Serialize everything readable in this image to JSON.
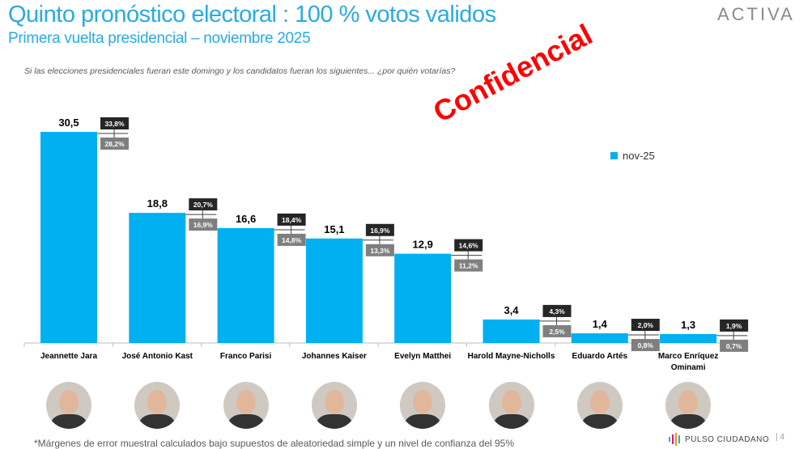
{
  "header": {
    "title": "Quinto pronóstico electoral : 100 % votos validos",
    "subtitle": "Primera vuelta presidencial – noviembre 2025",
    "logo": "ACTIVA"
  },
  "question": "Si las elecciones presidenciales fueran este domingo y los candidatos fueran los siguientes... ¿por quién votarías?",
  "watermark": "Confidencial",
  "footer": {
    "note": "*Márgenes de error muestral calculados bajo supuestos de aleatoriedad simple y un nivel de confianza del 95%",
    "brand": "PULSO CIUDADANO",
    "page": "4"
  },
  "colors": {
    "bar": "#00b0f0",
    "title": "#29abe2",
    "upper_box": "#262626",
    "lower_box": "#7f7f7f",
    "watermark": "#ff0000"
  },
  "chart_data": {
    "type": "bar",
    "categories": [
      "Jeannette Jara",
      "José Antonio Kast",
      "Franco Parisi",
      "Johannes Kaiser",
      "Evelyn Matthei",
      "Harold Mayne-Nicholls",
      "Eduardo Artés",
      "Marco Enríquez Ominami"
    ],
    "series": [
      {
        "name": "nov-25",
        "values": [
          30.5,
          18.8,
          16.6,
          15.1,
          12.9,
          3.4,
          1.4,
          1.3
        ],
        "labels": [
          "30,5",
          "18,8",
          "16,6",
          "15,1",
          "12,9",
          "3,4",
          "1,4",
          "1,3"
        ]
      }
    ],
    "error_upper": [
      "33,8%",
      "20,7%",
      "18,4%",
      "16,9%",
      "14,6%",
      "4,3%",
      "2,0%",
      "1,9%"
    ],
    "error_lower": [
      "28,2%",
      "16,9%",
      "14,8%",
      "13,3%",
      "11,2%",
      "2,5%",
      "0,8%",
      "0,7%"
    ],
    "legend": "top-right",
    "ylim": [
      0,
      32
    ],
    "grid": false
  }
}
